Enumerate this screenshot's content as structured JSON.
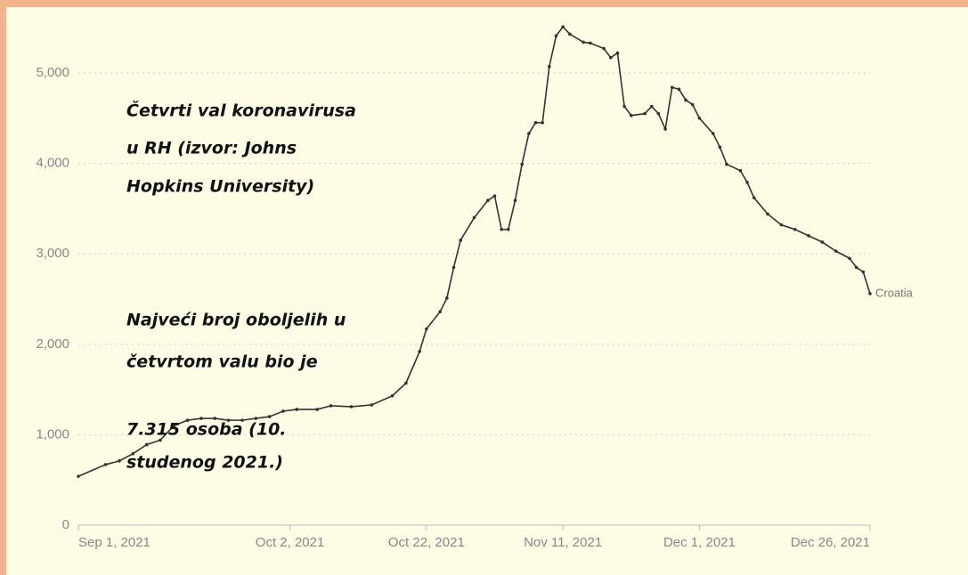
{
  "chart_data": {
    "type": "line",
    "annotations": [
      "Četvrti val koronavirusa",
      "u RH (izvor: Johns",
      "Hopkins University)",
      "Najveći broj oboljelih u",
      "četvrtom valu bio je",
      "7.315 osoba (10.",
      "studenog 2021.)"
    ],
    "x": [
      "2021-09-01",
      "2021-09-05",
      "2021-09-07",
      "2021-09-09",
      "2021-09-11",
      "2021-09-13",
      "2021-09-15",
      "2021-09-17",
      "2021-09-19",
      "2021-09-21",
      "2021-09-23",
      "2021-09-25",
      "2021-09-27",
      "2021-09-29",
      "2021-10-01",
      "2021-10-03",
      "2021-10-06",
      "2021-10-08",
      "2021-10-11",
      "2021-10-14",
      "2021-10-17",
      "2021-10-19",
      "2021-10-21",
      "2021-10-22",
      "2021-10-24",
      "2021-10-25",
      "2021-10-26",
      "2021-10-27",
      "2021-10-29",
      "2021-10-31",
      "2021-11-01",
      "2021-11-02",
      "2021-11-03",
      "2021-11-04",
      "2021-11-05",
      "2021-11-06",
      "2021-11-07",
      "2021-11-08",
      "2021-11-09",
      "2021-11-10",
      "2021-11-11",
      "2021-11-12",
      "2021-11-14",
      "2021-11-15",
      "2021-11-17",
      "2021-11-18",
      "2021-11-19",
      "2021-11-20",
      "2021-11-21",
      "2021-11-23",
      "2021-11-24",
      "2021-11-25",
      "2021-11-26",
      "2021-11-27",
      "2021-11-28",
      "2021-11-29",
      "2021-11-30",
      "2021-12-01",
      "2021-12-03",
      "2021-12-04",
      "2021-12-05",
      "2021-12-07",
      "2021-12-08",
      "2021-12-09",
      "2021-12-11",
      "2021-12-13",
      "2021-12-15",
      "2021-12-17",
      "2021-12-19",
      "2021-12-21",
      "2021-12-23",
      "2021-12-24",
      "2021-12-25",
      "2021-12-26"
    ],
    "series": [
      {
        "name": "Croatia",
        "color": "#333333",
        "values": [
          540,
          670,
          710,
          790,
          890,
          940,
          1100,
          1160,
          1180,
          1180,
          1160,
          1160,
          1180,
          1200,
          1260,
          1280,
          1280,
          1320,
          1310,
          1330,
          1430,
          1570,
          1920,
          2170,
          2360,
          2510,
          2850,
          3150,
          3400,
          3590,
          3640,
          3270,
          3270,
          3590,
          3990,
          4330,
          4450,
          4450,
          5070,
          5410,
          5510,
          5430,
          5340,
          5330,
          5270,
          5170,
          5220,
          4630,
          4530,
          4550,
          4630,
          4550,
          4380,
          4840,
          4820,
          4700,
          4650,
          4500,
          4330,
          4180,
          3990,
          3920,
          3790,
          3620,
          3440,
          3320,
          3270,
          3200,
          3130,
          3030,
          2950,
          2850,
          2800,
          2560
        ]
      }
    ],
    "xlim": [
      "2021-09-01",
      "2021-12-26"
    ],
    "xticks": [
      {
        "value": "2021-09-01",
        "label": "Sep 1, 2021"
      },
      {
        "value": "2021-10-02",
        "label": "Oct 2, 2021"
      },
      {
        "value": "2021-10-22",
        "label": "Oct 22, 2021"
      },
      {
        "value": "2021-11-11",
        "label": "Nov 11, 2021"
      },
      {
        "value": "2021-12-01",
        "label": "Dec 1, 2021"
      },
      {
        "value": "2021-12-26",
        "label": "Dec 26, 2021"
      }
    ],
    "ylim": [
      0,
      5600
    ],
    "yticks": [
      0,
      {
        "value": 1000,
        "label": "1,000"
      },
      {
        "value": 2000,
        "label": "2,000"
      },
      {
        "value": 3000,
        "label": "3,000"
      },
      {
        "value": 4000,
        "label": "4,000"
      },
      {
        "value": 5000,
        "label": "5,000"
      }
    ],
    "grid": true
  }
}
